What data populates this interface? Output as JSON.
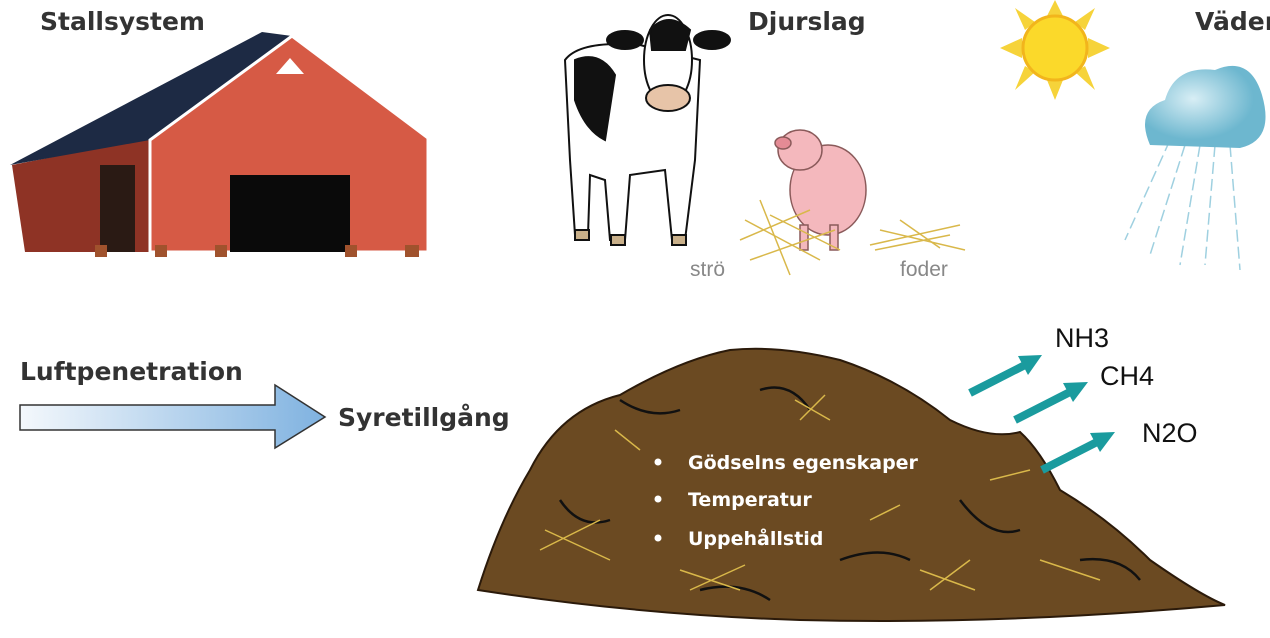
{
  "headings": [
    "Stallsystem",
    "Djurslag",
    "Väder"
  ],
  "animal_labels": [
    "strö",
    "foder"
  ],
  "flow": {
    "source": "Luftpenetration",
    "target": "Syretillgång"
  },
  "gases": [
    "NH3",
    "CH4",
    "N2O"
  ],
  "factors": [
    "Gödselns egenskaper",
    "Temperatur",
    "Uppehållstid"
  ]
}
